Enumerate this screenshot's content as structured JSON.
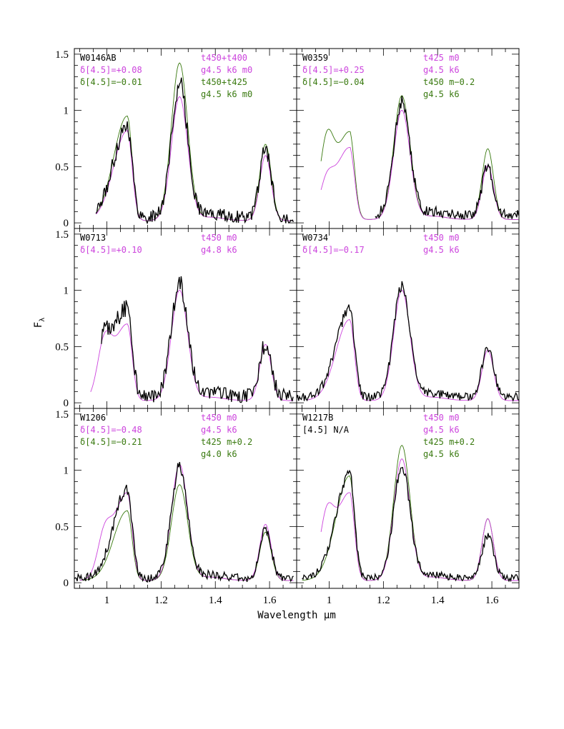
{
  "chart_data": {
    "type": "line",
    "xlabel": "Wavelength μm",
    "ylabel": "F",
    "ylabel_sub": "λ",
    "xlim": [
      0.88,
      1.7
    ],
    "ylim": [
      -0.05,
      1.55
    ],
    "x_ticks": [
      1,
      1.2,
      1.4,
      1.6
    ],
    "x_tick_labels": [
      "1",
      "1.2",
      "1.4",
      "1.6"
    ],
    "y_ticks": [
      0,
      0.5,
      1,
      1.5
    ],
    "y_tick_labels": [
      "0",
      "0.5",
      "1",
      "1.5"
    ],
    "colors": {
      "observed": "#000000",
      "model1": "#cc44dd",
      "model2": "#3a7a10"
    },
    "panels": [
      {
        "object": "W0146AB",
        "labels_left": [
          {
            "text": "W0146AB",
            "role": "observed"
          },
          {
            "text": "δ[4.5]=+0.08",
            "role": "model1"
          },
          {
            "text": "δ[4.5]=−0.01",
            "role": "model2"
          }
        ],
        "labels_right": [
          {
            "text": "t450+t400",
            "role": "model1"
          },
          {
            "text": "g4.5 k6 m0",
            "role": "model1"
          },
          {
            "text": "t450+t425",
            "role": "model2"
          },
          {
            "text": "g4.5 k6 m0",
            "role": "model2"
          }
        ],
        "series": [
          {
            "name": "observed",
            "x0": 0.96,
            "x1": 1.69,
            "peaks": [
              0.82,
              1.18,
              0.6
            ],
            "floor": 0.05,
            "noise": 0.09
          },
          {
            "name": "model1",
            "x0": 0.96,
            "x1": 1.69,
            "peaks": [
              0.8,
              1.1,
              0.58
            ],
            "floor": 0.02,
            "noise": 0.0
          },
          {
            "name": "model2",
            "x0": 0.96,
            "x1": 1.69,
            "peaks": [
              0.93,
              1.4,
              0.68
            ],
            "floor": 0.02,
            "noise": 0.0
          }
        ]
      },
      {
        "object": "W0359",
        "labels_left": [
          {
            "text": "W0359",
            "role": "observed"
          },
          {
            "text": "δ[4.5]=+0.25",
            "role": "model1"
          },
          {
            "text": "δ[4.5]=−0.04",
            "role": "model2"
          }
        ],
        "labels_right": [
          {
            "text": "t425 m0",
            "role": "model1"
          },
          {
            "text": "g4.5 k6",
            "role": "model1"
          },
          {
            "text": "t450 m−0.2",
            "role": "model2"
          },
          {
            "text": "g4.5 k6",
            "role": "model2"
          }
        ],
        "series": [
          {
            "name": "observed",
            "x0": 1.17,
            "x1": 1.7,
            "peaks": [
              0.6,
              1.0,
              0.43
            ],
            "floor": 0.07,
            "noise": 0.07
          },
          {
            "name": "model1",
            "x0": 0.97,
            "x1": 1.7,
            "peaks": [
              0.64,
              0.97,
              0.48
            ],
            "floor": 0.03,
            "noise": 0.0,
            "shoulder": 0.38
          },
          {
            "name": "model2",
            "x0": 0.97,
            "x1": 1.7,
            "peaks": [
              0.78,
              1.1,
              0.63
            ],
            "floor": 0.03,
            "noise": 0.0,
            "shoulder": 0.85
          }
        ]
      },
      {
        "object": "W0713",
        "labels_left": [
          {
            "text": "W0713",
            "role": "observed"
          },
          {
            "text": "δ[4.5]=+0.10",
            "role": "model1"
          }
        ],
        "labels_right": [
          {
            "text": "t450 m0",
            "role": "model1"
          },
          {
            "text": "g4.8 k6",
            "role": "model1"
          }
        ],
        "series": [
          {
            "name": "observed",
            "x0": 0.98,
            "x1": 1.69,
            "peaks": [
              0.8,
              1.0,
              0.47
            ],
            "floor": 0.06,
            "noise": 0.1,
            "shoulder": 0.55
          },
          {
            "name": "model1",
            "x0": 0.94,
            "x1": 1.69,
            "peaks": [
              0.68,
              0.98,
              0.5
            ],
            "floor": 0.02,
            "noise": 0.0,
            "shoulder": 0.62
          }
        ]
      },
      {
        "object": "W0734",
        "labels_left": [
          {
            "text": "W0734",
            "role": "observed"
          },
          {
            "text": "δ[4.5]=−0.17",
            "role": "model1"
          }
        ],
        "labels_right": [
          {
            "text": "t450 m0",
            "role": "model1"
          },
          {
            "text": "g4.5 k6",
            "role": "model1"
          }
        ],
        "series": [
          {
            "name": "observed",
            "x0": 0.88,
            "x1": 1.7,
            "peaks": [
              0.78,
              0.99,
              0.45
            ],
            "floor": 0.05,
            "noise": 0.06
          },
          {
            "name": "model1",
            "x0": 0.92,
            "x1": 1.7,
            "peaks": [
              0.72,
              0.98,
              0.45
            ],
            "floor": 0.02,
            "noise": 0.0
          }
        ]
      },
      {
        "object": "W1206",
        "labels_left": [
          {
            "text": "W1206",
            "role": "observed"
          },
          {
            "text": "δ[4.5]=−0.48",
            "role": "model1"
          },
          {
            "text": "δ[4.5]=−0.21",
            "role": "model2"
          }
        ],
        "labels_right": [
          {
            "text": "t450 m0",
            "role": "model1"
          },
          {
            "text": "g4.5 k6",
            "role": "model1"
          },
          {
            "text": "t425 m+0.2",
            "role": "model2"
          },
          {
            "text": "g4.0 k6",
            "role": "model2"
          }
        ],
        "series": [
          {
            "name": "observed",
            "x0": 0.88,
            "x1": 1.69,
            "peaks": [
              0.8,
              0.99,
              0.44
            ],
            "floor": 0.04,
            "noise": 0.06
          },
          {
            "name": "model1",
            "x0": 0.9,
            "x1": 1.69,
            "peaks": [
              0.78,
              1.03,
              0.5
            ],
            "floor": 0.02,
            "noise": 0.0,
            "shoulder": 0.45
          },
          {
            "name": "model2",
            "x0": 0.9,
            "x1": 1.69,
            "peaks": [
              0.62,
              0.85,
              0.43
            ],
            "floor": 0.02,
            "noise": 0.0
          }
        ]
      },
      {
        "object": "W1217B",
        "labels_left": [
          {
            "text": "W1217B",
            "role": "observed"
          },
          {
            "text": "[4.5] N/A",
            "role": "observed"
          }
        ],
        "labels_right": [
          {
            "text": "t450 m0",
            "role": "model1"
          },
          {
            "text": "g4.5 k6",
            "role": "model1"
          },
          {
            "text": "t425 m+0.2",
            "role": "model2"
          },
          {
            "text": "g4.5 k6",
            "role": "model2"
          }
        ],
        "series": [
          {
            "name": "observed",
            "x0": 0.9,
            "x1": 1.7,
            "peaks": [
              0.93,
              1.0,
              0.38
            ],
            "floor": 0.04,
            "noise": 0.05
          },
          {
            "name": "model1",
            "x0": 0.97,
            "x1": 1.7,
            "peaks": [
              0.78,
              1.08,
              0.55
            ],
            "floor": 0.02,
            "noise": 0.0,
            "shoulder": 0.68
          },
          {
            "name": "model2",
            "x0": 0.9,
            "x1": 1.7,
            "peaks": [
              0.93,
              1.2,
              0.55
            ],
            "floor": 0.02,
            "noise": 0.0
          }
        ]
      }
    ]
  }
}
